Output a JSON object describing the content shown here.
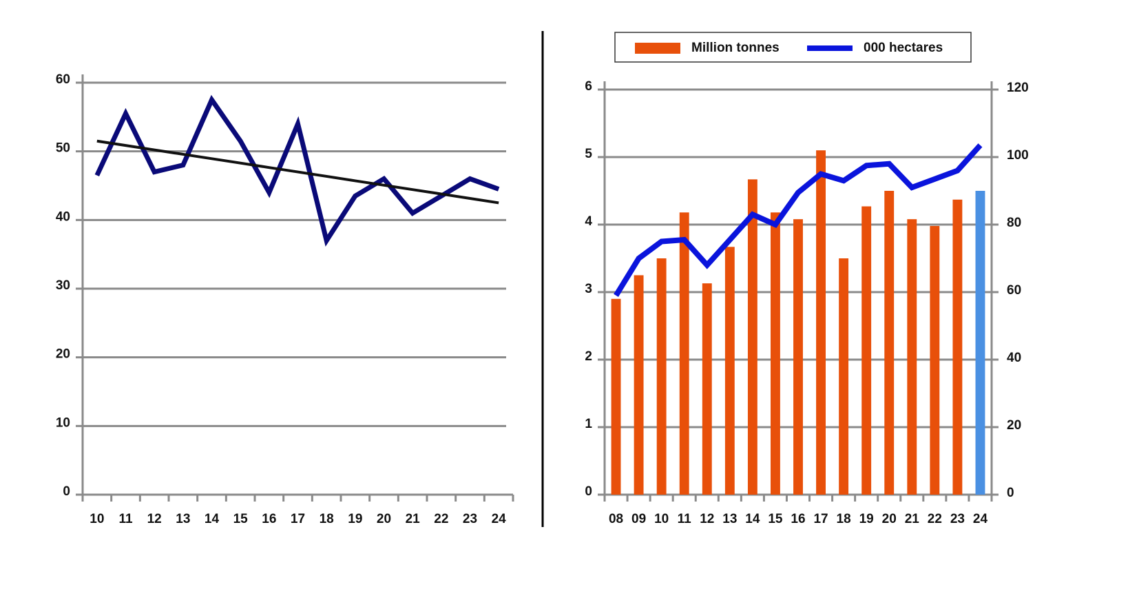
{
  "chart_data": [
    {
      "type": "line",
      "categories": [
        "10",
        "11",
        "12",
        "13",
        "14",
        "15",
        "16",
        "17",
        "18",
        "19",
        "20",
        "21",
        "22",
        "23",
        "24"
      ],
      "series": [
        {
          "color": "#0a0a78",
          "width": 7,
          "values": [
            46.5,
            55.5,
            47,
            48,
            57.5,
            51.5,
            44,
            54,
            37,
            43.5,
            46,
            41,
            43.5,
            46,
            44.5
          ]
        },
        {
          "color": "#111111",
          "width": 4,
          "values": [
            51.5,
            50.86,
            50.21,
            49.57,
            48.93,
            48.29,
            47.64,
            47.0,
            46.36,
            45.71,
            45.07,
            44.43,
            43.79,
            43.14,
            42.5
          ]
        }
      ],
      "ylim": [
        0,
        60
      ],
      "yticks": [
        0,
        10,
        20,
        30,
        40,
        50,
        60
      ],
      "grid": true
    },
    {
      "type": "bar",
      "categories": [
        "08",
        "09",
        "10",
        "11",
        "12",
        "13",
        "14",
        "15",
        "16",
        "17",
        "18",
        "19",
        "20",
        "21",
        "22",
        "23",
        "24"
      ],
      "series": [
        {
          "name": "Million tonnes",
          "color": "#e8500a",
          "colors": [
            "#e8500a",
            "#e8500a",
            "#e8500a",
            "#e8500a",
            "#e8500a",
            "#e8500a",
            "#e8500a",
            "#e8500a",
            "#e8500a",
            "#e8500a",
            "#e8500a",
            "#e8500a",
            "#e8500a",
            "#e8500a",
            "#e8500a",
            "#e8500a",
            "#4a90e2"
          ],
          "values": [
            2.9,
            3.25,
            3.5,
            4.18,
            3.13,
            3.67,
            4.67,
            4.18,
            4.08,
            5.1,
            3.5,
            4.27,
            4.5,
            4.08,
            3.98,
            4.37,
            4.5
          ]
        },
        {
          "name": "000 hectares",
          "type": "line",
          "axis": "y2",
          "color": "#0a14dc",
          "width": 8,
          "values": [
            59,
            70,
            75,
            75.5,
            68,
            75.5,
            83,
            80,
            89.5,
            95,
            93,
            97.5,
            98,
            91,
            93.5,
            96,
            103.5
          ]
        }
      ],
      "ylim": [
        0,
        6
      ],
      "yticks": [
        0,
        1,
        2,
        3,
        4,
        5,
        6
      ],
      "y2lim": [
        0,
        120
      ],
      "y2ticks": [
        0,
        20,
        40,
        60,
        80,
        100,
        120
      ],
      "grid": true,
      "legend": "top"
    }
  ]
}
